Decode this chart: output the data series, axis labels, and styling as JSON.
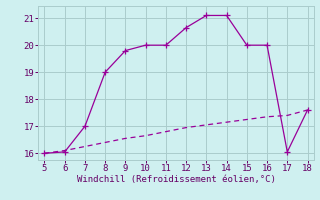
{
  "xlabel": "Windchill (Refroidissement éolien,°C)",
  "curve1_x": [
    5,
    6,
    7,
    8,
    9,
    10,
    11,
    12,
    13,
    14,
    15,
    16,
    17,
    18
  ],
  "curve1_y": [
    16.0,
    16.05,
    17.0,
    19.0,
    19.8,
    20.0,
    20.0,
    20.65,
    21.1,
    21.1,
    20.0,
    20.0,
    16.05,
    17.6
  ],
  "curve2_x": [
    5,
    6,
    7,
    8,
    9,
    10,
    11,
    12,
    13,
    14,
    15,
    16,
    17,
    18
  ],
  "curve2_y": [
    16.0,
    16.1,
    16.25,
    16.4,
    16.55,
    16.65,
    16.8,
    16.95,
    17.05,
    17.15,
    17.25,
    17.35,
    17.4,
    17.6
  ],
  "line_color": "#990099",
  "bg_color": "#cff0f0",
  "grid_color": "#aacccc",
  "text_color": "#660066",
  "xlim": [
    4.7,
    18.3
  ],
  "ylim": [
    15.75,
    21.45
  ],
  "xticks": [
    5,
    6,
    7,
    8,
    9,
    10,
    11,
    12,
    13,
    14,
    15,
    16,
    17,
    18
  ],
  "yticks": [
    16,
    17,
    18,
    19,
    20,
    21
  ]
}
